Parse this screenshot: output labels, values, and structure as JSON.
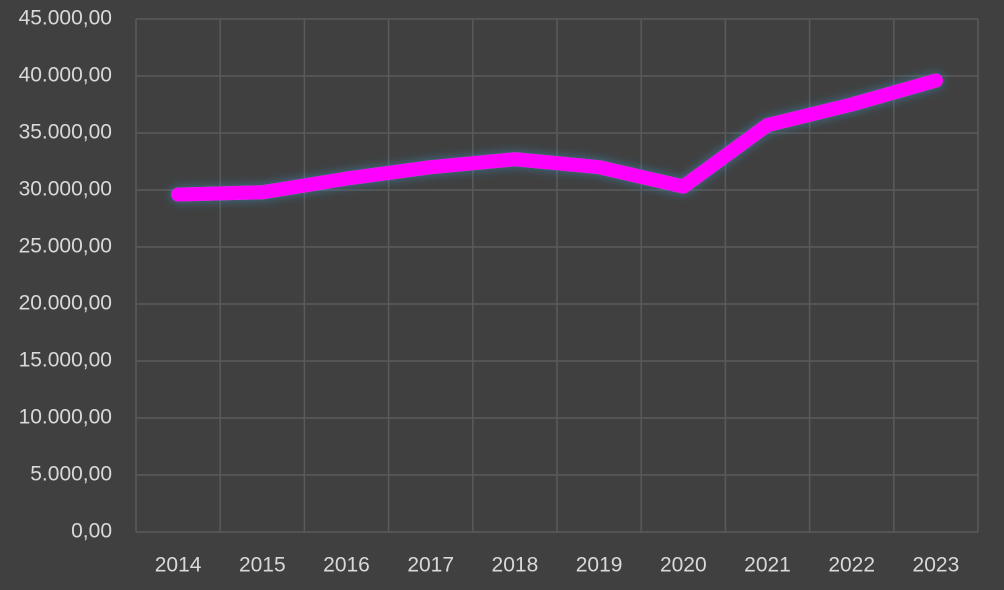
{
  "chart_data": {
    "type": "line",
    "categories": [
      "2014",
      "2015",
      "2016",
      "2017",
      "2018",
      "2019",
      "2020",
      "2021",
      "2022",
      "2023"
    ],
    "series": [
      {
        "color": "#ff00ff",
        "values": [
          29600,
          29800,
          31000,
          32000,
          32700,
          32000,
          30300,
          35700,
          37500,
          39600
        ]
      }
    ],
    "ylim": [
      0,
      45000
    ],
    "yticks": [
      {
        "value": 0,
        "label": "0,00"
      },
      {
        "value": 5000,
        "label": "5.000,00"
      },
      {
        "value": 10000,
        "label": "10.000,00"
      },
      {
        "value": 15000,
        "label": "15.000,00"
      },
      {
        "value": 20000,
        "label": "20.000,00"
      },
      {
        "value": 25000,
        "label": "25.000,00"
      },
      {
        "value": 30000,
        "label": "30.000,00"
      },
      {
        "value": 35000,
        "label": "35.000,00"
      },
      {
        "value": 40000,
        "label": "40.000,00"
      },
      {
        "value": 45000,
        "label": "45.000,00"
      }
    ],
    "grid": true
  }
}
